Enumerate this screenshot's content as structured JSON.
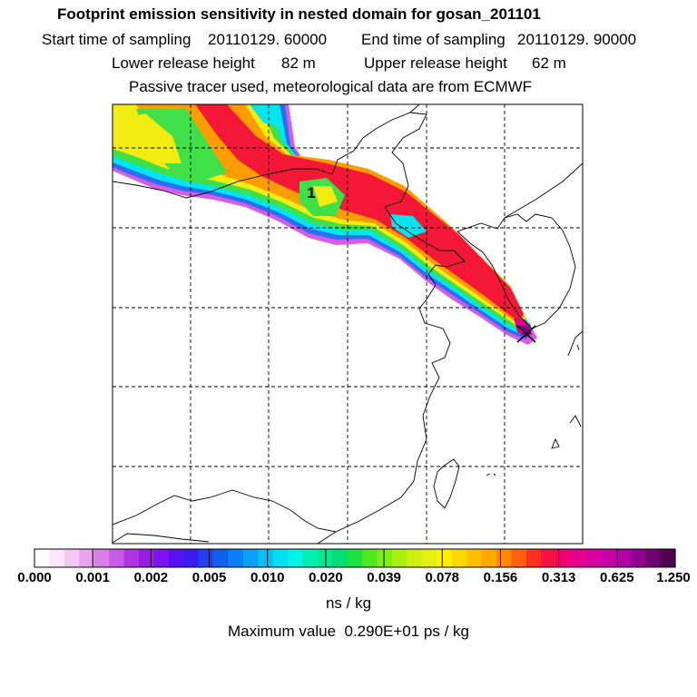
{
  "header": {
    "title": "Footprint emission sensitivity in nested domain for gosan_201101",
    "start_label": "Start time of sampling",
    "start_value": "20110129. 60000",
    "end_label": "End time of sampling",
    "end_value": "20110129. 90000",
    "lower_label": "Lower release height",
    "lower_value": "82 m",
    "upper_label": "Upper release height",
    "upper_value": "62 m",
    "tracer_note": "Passive tracer used, meteorological data are from ECMWF"
  },
  "map": {
    "marker_label": "1",
    "receptor_marker": "x-marker-icon"
  },
  "colorbar": {
    "ticks": [
      "0.000",
      "0.001",
      "0.002",
      "0.005",
      "0.010",
      "0.020",
      "0.039",
      "0.078",
      "0.156",
      "0.313",
      "0.625",
      "1.250"
    ],
    "colors": [
      "#ffffff",
      "#fbe6fb",
      "#f3c8f5",
      "#e9a2ef",
      "#db7eea",
      "#c85ae6",
      "#b133e6",
      "#9b1ae8",
      "#7d14f0",
      "#5a10f0",
      "#3a1cf0",
      "#2040f0",
      "#1060f0",
      "#0a80f5",
      "#0aa0f5",
      "#05c0f5",
      "#00e0f0",
      "#00f5e6",
      "#00f0b0",
      "#00e890",
      "#00e070",
      "#20e040",
      "#50e820",
      "#80ee10",
      "#a8f010",
      "#ccf010",
      "#e6f010",
      "#fff000",
      "#ffd800",
      "#ffc000",
      "#ffa800",
      "#ff8800",
      "#ff6010",
      "#ff3020",
      "#f81040",
      "#f00070",
      "#e60090",
      "#d800a0",
      "#c800a8",
      "#b000a8",
      "#900090",
      "#700070",
      "#500050"
    ],
    "unit": "ns / kg"
  },
  "footer": {
    "max_label": "Maximum value",
    "max_value": "0.290E+01 ps / kg"
  }
}
